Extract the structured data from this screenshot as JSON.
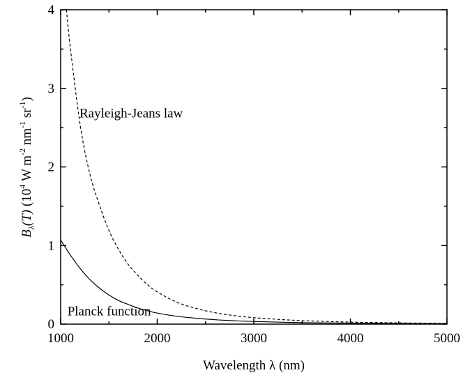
{
  "chart_data": {
    "type": "line",
    "xlabel": "Wavelength λ (nm)",
    "ylabel": "B_λ(T) (10^4 W m^-2 nm^-1 sr^-1)",
    "ylabel_parts": {
      "symbol": "B",
      "symbol_sub": "λ",
      "arg": "(T)",
      "open": " (10",
      "exp1": "4",
      "w_m": " W m",
      "exp2": "-2",
      "nm": " nm",
      "exp3": "-1",
      "sr": " sr",
      "exp4": "-1",
      "close": ")"
    },
    "xlim": [
      1000,
      5000
    ],
    "ylim": [
      0,
      4
    ],
    "x_ticks": [
      "1000",
      "2000",
      "3000",
      "4000",
      "5000"
    ],
    "y_ticks": [
      "0",
      "1",
      "2",
      "3",
      "4"
    ],
    "grid": false,
    "series": [
      {
        "name": "Planck function",
        "style": "solid",
        "x": [
          1000,
          1100,
          1200,
          1300,
          1400,
          1500,
          1600,
          1700,
          1800,
          1900,
          2000,
          2200,
          2400,
          2600,
          2800,
          3000,
          3300,
          3600,
          4000,
          4500,
          5000
        ],
        "y": [
          1.07,
          0.88,
          0.71,
          0.57,
          0.46,
          0.37,
          0.3,
          0.25,
          0.205,
          0.17,
          0.14,
          0.1,
          0.075,
          0.056,
          0.043,
          0.034,
          0.024,
          0.017,
          0.012,
          0.008,
          0.005
        ]
      },
      {
        "name": "Rayleigh-Jeans law",
        "style": "dashed",
        "x": [
          1060,
          1100,
          1200,
          1300,
          1400,
          1500,
          1600,
          1700,
          1800,
          1900,
          2000,
          2200,
          2400,
          2600,
          2800,
          3000,
          3300,
          3600,
          4000,
          4500,
          5000
        ],
        "y": [
          4.0,
          3.52,
          2.55,
          1.92,
          1.52,
          1.19,
          0.95,
          0.76,
          0.62,
          0.5,
          0.41,
          0.28,
          0.2,
          0.145,
          0.108,
          0.082,
          0.057,
          0.04,
          0.026,
          0.016,
          0.01
        ]
      }
    ],
    "annotations": [
      {
        "text": "Rayleigh-Jeans law",
        "x": 1195,
        "y": 2.63
      },
      {
        "text": "Planck function",
        "x": 1070,
        "y": 0.11
      }
    ]
  }
}
